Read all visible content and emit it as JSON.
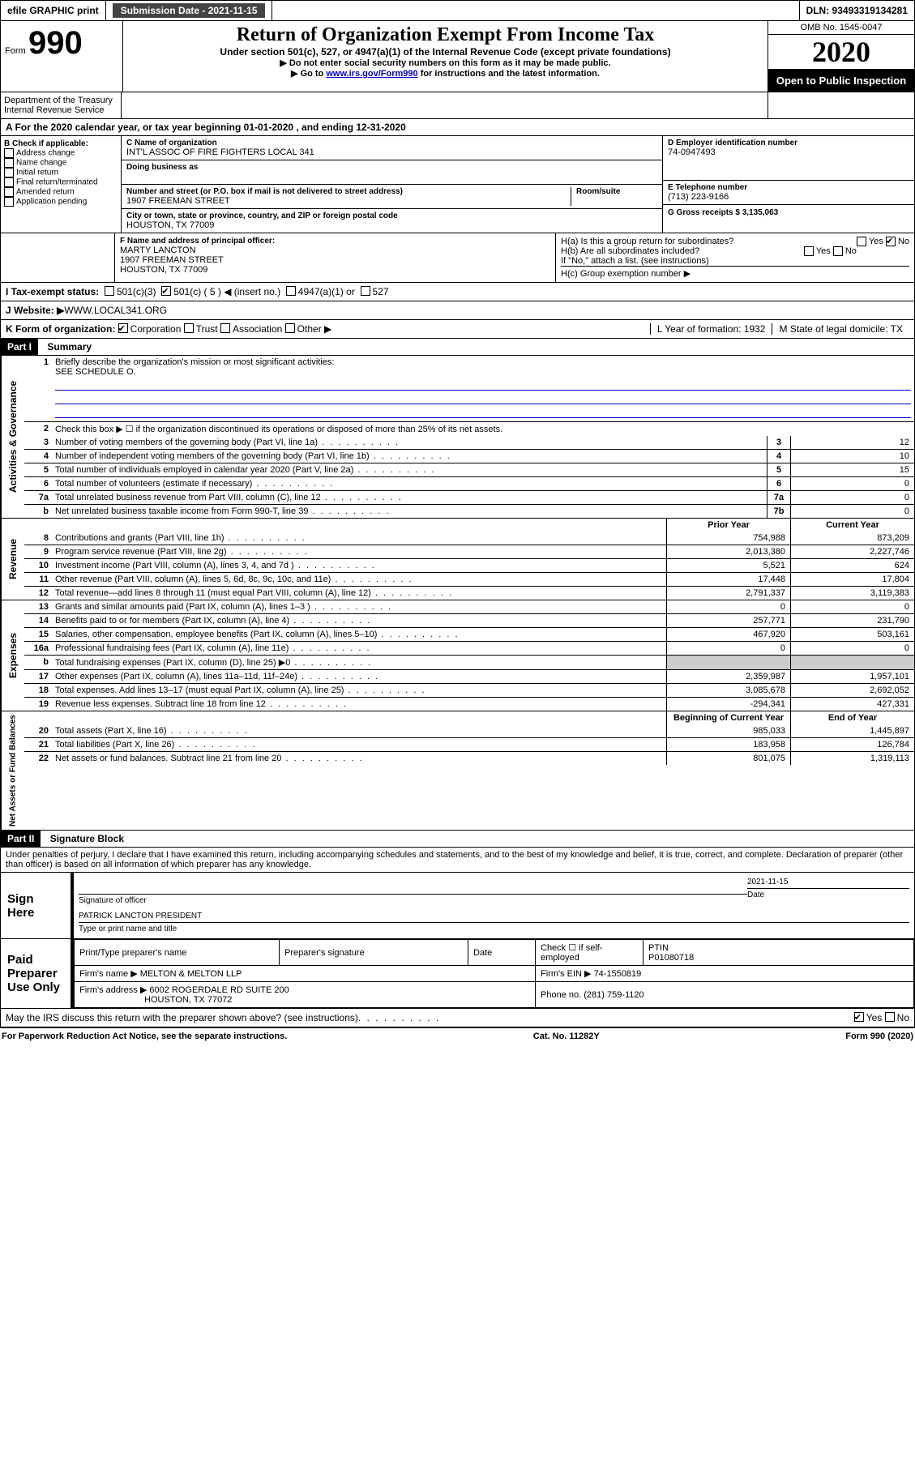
{
  "top_bar": {
    "efile": "efile GRAPHIC print",
    "submission_label": "Submission Date - 2021-11-15",
    "dln": "DLN: 93493319134281"
  },
  "header": {
    "form_word": "Form",
    "form_num": "990",
    "title": "Return of Organization Exempt From Income Tax",
    "subtitle": "Under section 501(c), 527, or 4947(a)(1) of the Internal Revenue Code (except private foundations)",
    "instr1": "▶ Do not enter social security numbers on this form as it may be made public.",
    "instr2_a": "▶ Go to ",
    "instr2_link": "www.irs.gov/Form990",
    "instr2_b": " for instructions and the latest information.",
    "omb": "OMB No. 1545-0047",
    "year": "2020",
    "open": "Open to Public Inspection",
    "dept1": "Department of the Treasury",
    "dept2": "Internal Revenue Service"
  },
  "row_a": "A For the 2020 calendar year, or tax year beginning 01-01-2020   , and ending 12-31-2020",
  "section_b": {
    "label": "B Check if applicable:",
    "opts": [
      "Address change",
      "Name change",
      "Initial return",
      "Final return/terminated",
      "Amended return",
      "Application pending"
    ]
  },
  "section_c": {
    "name_label": "C Name of organization",
    "name": "INT'L ASSOC OF FIRE FIGHTERS LOCAL 341",
    "dba_label": "Doing business as",
    "addr_label": "Number and street (or P.O. box if mail is not delivered to street address)",
    "room_label": "Room/suite",
    "addr": "1907 FREEMAN STREET",
    "city_label": "City or town, state or province, country, and ZIP or foreign postal code",
    "city": "HOUSTON, TX  77009"
  },
  "section_d": {
    "label": "D Employer identification number",
    "value": "74-0947493"
  },
  "section_e": {
    "label": "E Telephone number",
    "value": "(713) 223-9166"
  },
  "section_g": {
    "label": "G Gross receipts $ 3,135,063"
  },
  "section_f": {
    "label": "F Name and address of principal officer:",
    "l1": "MARTY LANCTON",
    "l2": "1907 FREEMAN STREET",
    "l3": "HOUSTON, TX  77009"
  },
  "section_h": {
    "a": "H(a)  Is this a group return for subordinates?",
    "b": "H(b)  Are all subordinates included?",
    "b_note": "If \"No,\" attach a list. (see instructions)",
    "c": "H(c)  Group exemption number ▶"
  },
  "row_i": {
    "label": "I  Tax-exempt status:",
    "o1": "501(c)(3)",
    "o2": "501(c) ( 5 ) ◀ (insert no.)",
    "o3": "4947(a)(1) or",
    "o4": "527"
  },
  "row_j": {
    "label": "J  Website: ▶ ",
    "value": "WWW.LOCAL341.ORG"
  },
  "row_k": {
    "label": "K Form of organization:",
    "o1": "Corporation",
    "o2": "Trust",
    "o3": "Association",
    "o4": "Other ▶",
    "l_label": "L Year of formation: 1932",
    "m_label": "M State of legal domicile: TX"
  },
  "part1": {
    "hdr": "Part I",
    "title": "Summary"
  },
  "summary": {
    "l1": "Briefly describe the organization's mission or most significant activities:",
    "l1v": "SEE SCHEDULE O.",
    "l2": "Check this box ▶ ☐  if the organization discontinued its operations or disposed of more than 25% of its net assets.",
    "rows_gov": [
      {
        "n": "3",
        "d": "Number of voting members of the governing body (Part VI, line 1a)",
        "c": "3",
        "v": "12"
      },
      {
        "n": "4",
        "d": "Number of independent voting members of the governing body (Part VI, line 1b)",
        "c": "4",
        "v": "10"
      },
      {
        "n": "5",
        "d": "Total number of individuals employed in calendar year 2020 (Part V, line 2a)",
        "c": "5",
        "v": "15"
      },
      {
        "n": "6",
        "d": "Total number of volunteers (estimate if necessary)",
        "c": "6",
        "v": "0"
      },
      {
        "n": "7a",
        "d": "Total unrelated business revenue from Part VIII, column (C), line 12",
        "c": "7a",
        "v": "0"
      },
      {
        "n": "b",
        "d": "Net unrelated business taxable income from Form 990-T, line 39",
        "c": "7b",
        "v": "0"
      }
    ],
    "hdr_prior": "Prior Year",
    "hdr_curr": "Current Year",
    "rows_rev": [
      {
        "n": "8",
        "d": "Contributions and grants (Part VIII, line 1h)",
        "p": "754,988",
        "c": "873,209"
      },
      {
        "n": "9",
        "d": "Program service revenue (Part VIII, line 2g)",
        "p": "2,013,380",
        "c": "2,227,746"
      },
      {
        "n": "10",
        "d": "Investment income (Part VIII, column (A), lines 3, 4, and 7d )",
        "p": "5,521",
        "c": "624"
      },
      {
        "n": "11",
        "d": "Other revenue (Part VIII, column (A), lines 5, 6d, 8c, 9c, 10c, and 11e)",
        "p": "17,448",
        "c": "17,804"
      },
      {
        "n": "12",
        "d": "Total revenue—add lines 8 through 11 (must equal Part VIII, column (A), line 12)",
        "p": "2,791,337",
        "c": "3,119,383"
      }
    ],
    "rows_exp": [
      {
        "n": "13",
        "d": "Grants and similar amounts paid (Part IX, column (A), lines 1–3 )",
        "p": "0",
        "c": "0"
      },
      {
        "n": "14",
        "d": "Benefits paid to or for members (Part IX, column (A), line 4)",
        "p": "257,771",
        "c": "231,790"
      },
      {
        "n": "15",
        "d": "Salaries, other compensation, employee benefits (Part IX, column (A), lines 5–10)",
        "p": "467,920",
        "c": "503,161"
      },
      {
        "n": "16a",
        "d": "Professional fundraising fees (Part IX, column (A), line 11e)",
        "p": "0",
        "c": "0"
      },
      {
        "n": "b",
        "d": "Total fundraising expenses (Part IX, column (D), line 25) ▶0",
        "p": "",
        "c": "",
        "shaded": true
      },
      {
        "n": "17",
        "d": "Other expenses (Part IX, column (A), lines 11a–11d, 11f–24e)",
        "p": "2,359,987",
        "c": "1,957,101"
      },
      {
        "n": "18",
        "d": "Total expenses. Add lines 13–17 (must equal Part IX, column (A), line 25)",
        "p": "3,085,678",
        "c": "2,692,052"
      },
      {
        "n": "19",
        "d": "Revenue less expenses. Subtract line 18 from line 12",
        "p": "-294,341",
        "c": "427,331"
      }
    ],
    "hdr_beg": "Beginning of Current Year",
    "hdr_end": "End of Year",
    "rows_net": [
      {
        "n": "20",
        "d": "Total assets (Part X, line 16)",
        "p": "985,033",
        "c": "1,445,897"
      },
      {
        "n": "21",
        "d": "Total liabilities (Part X, line 26)",
        "p": "183,958",
        "c": "126,784"
      },
      {
        "n": "22",
        "d": "Net assets or fund balances. Subtract line 21 from line 20",
        "p": "801,075",
        "c": "1,319,113"
      }
    ]
  },
  "side_labels": {
    "gov": "Activities & Governance",
    "rev": "Revenue",
    "exp": "Expenses",
    "net": "Net Assets or Fund Balances"
  },
  "part2": {
    "hdr": "Part II",
    "title": "Signature Block",
    "penalty": "Under penalties of perjury, I declare that I have examined this return, including accompanying schedules and statements, and to the best of my knowledge and belief, it is true, correct, and complete. Declaration of preparer (other than officer) is based on all information of which preparer has any knowledge."
  },
  "sign": {
    "here": "Sign Here",
    "sig_of_officer": "Signature of officer",
    "date_label": "Date",
    "date_val": "2021-11-15",
    "name": "PATRICK LANCTON  PRESIDENT",
    "name_label": "Type or print name and title"
  },
  "paid": {
    "label": "Paid Preparer Use Only",
    "h1": "Print/Type preparer's name",
    "h2": "Preparer's signature",
    "h3": "Date",
    "h4a": "Check ☐ if self-employed",
    "h5": "PTIN",
    "ptin": "P01080718",
    "firm_name_l": "Firm's name   ▶",
    "firm_name": "MELTON & MELTON LLP",
    "firm_ein_l": "Firm's EIN ▶",
    "firm_ein": "74-1550819",
    "firm_addr_l": "Firm's address ▶",
    "firm_addr1": "6002 ROGERDALE RD SUITE 200",
    "firm_addr2": "HOUSTON, TX  77072",
    "phone_l": "Phone no.",
    "phone": "(281) 759-1120"
  },
  "discuss": "May the IRS discuss this return with the preparer shown above? (see instructions)",
  "footer": {
    "left": "For Paperwork Reduction Act Notice, see the separate instructions.",
    "mid": "Cat. No. 11282Y",
    "right": "Form 990 (2020)"
  },
  "yes": "Yes",
  "no": "No"
}
